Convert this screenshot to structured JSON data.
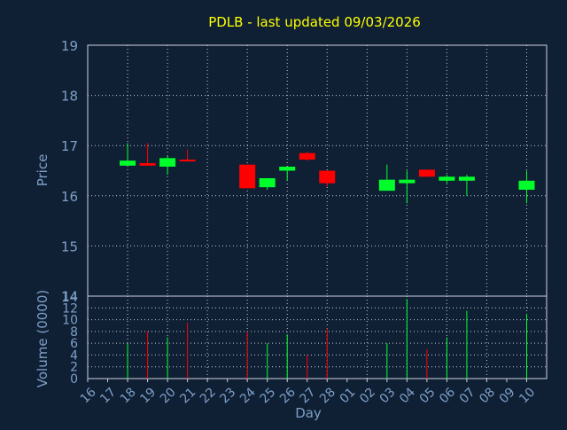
{
  "title": "PDLB - last updated 09/03/2026",
  "colors": {
    "background": "#0f2035",
    "up": "#00ff2a",
    "down": "#ff0000",
    "axis_text": "#7f9fc6",
    "title": "#ffff00"
  },
  "chart_data": [
    {
      "type": "candlestick",
      "ylabel": "Price",
      "ylim": [
        14,
        19
      ],
      "yticks": [
        "14",
        "15",
        "16",
        "17",
        "18",
        "19"
      ],
      "grid": true,
      "candles": [
        {
          "x": "17",
          "open": 16.6,
          "high": 17.05,
          "low": 16.6,
          "close": 16.7
        },
        {
          "x": "18",
          "open": 16.65,
          "high": 17.05,
          "low": 16.6,
          "close": 16.6
        },
        {
          "x": "19",
          "open": 16.58,
          "high": 16.8,
          "low": 16.42,
          "close": 16.75
        },
        {
          "x": "20",
          "open": 16.72,
          "high": 16.92,
          "low": 16.68,
          "close": 16.7
        },
        {
          "x": "23",
          "open": 16.62,
          "high": 16.62,
          "low": 16.15,
          "close": 16.15
        },
        {
          "x": "24",
          "open": 16.17,
          "high": 16.35,
          "low": 16.12,
          "close": 16.35
        },
        {
          "x": "25",
          "open": 16.5,
          "high": 16.58,
          "low": 16.3,
          "close": 16.58
        },
        {
          "x": "26",
          "open": 16.85,
          "high": 16.88,
          "low": 16.7,
          "close": 16.72
        },
        {
          "x": "27",
          "open": 16.5,
          "high": 16.5,
          "low": 16.18,
          "close": 16.25
        },
        {
          "x": "02",
          "open": 16.1,
          "high": 16.62,
          "low": 16.1,
          "close": 16.32
        },
        {
          "x": "03",
          "open": 16.25,
          "high": 16.5,
          "low": 15.85,
          "close": 16.32
        },
        {
          "x": "04",
          "open": 16.52,
          "high": 16.52,
          "low": 16.38,
          "close": 16.38
        },
        {
          "x": "05",
          "open": 16.3,
          "high": 16.42,
          "low": 16.25,
          "close": 16.38
        },
        {
          "x": "06",
          "open": 16.3,
          "high": 16.42,
          "low": 16.0,
          "close": 16.38
        },
        {
          "x": "09",
          "open": 16.12,
          "high": 16.5,
          "low": 15.85,
          "close": 16.3
        }
      ]
    },
    {
      "type": "bar",
      "ylabel": "Volume (0000)",
      "xlabel": "Day",
      "ylim": [
        0,
        14
      ],
      "yticks": [
        "0",
        "2",
        "4",
        "6",
        "8",
        "10",
        "12",
        "14"
      ],
      "categories": [
        "16",
        "17",
        "18",
        "19",
        "20",
        "21",
        "22",
        "23",
        "24",
        "25",
        "26",
        "27",
        "28",
        "01",
        "02",
        "03",
        "04",
        "05",
        "06",
        "07",
        "08",
        "09",
        "10"
      ],
      "grid": true,
      "bars": [
        {
          "x": "17",
          "value": 6,
          "direction": "up"
        },
        {
          "x": "18",
          "value": 8,
          "direction": "down"
        },
        {
          "x": "19",
          "value": 7,
          "direction": "up"
        },
        {
          "x": "20",
          "value": 9.5,
          "direction": "down"
        },
        {
          "x": "23",
          "value": 8,
          "direction": "down"
        },
        {
          "x": "24",
          "value": 6,
          "direction": "up"
        },
        {
          "x": "25",
          "value": 7.5,
          "direction": "up"
        },
        {
          "x": "26",
          "value": 4,
          "direction": "down"
        },
        {
          "x": "27",
          "value": 8.5,
          "direction": "down"
        },
        {
          "x": "02",
          "value": 6,
          "direction": "up"
        },
        {
          "x": "03",
          "value": 13.5,
          "direction": "up"
        },
        {
          "x": "04",
          "value": 5,
          "direction": "down"
        },
        {
          "x": "05",
          "value": 7,
          "direction": "up"
        },
        {
          "x": "06",
          "value": 11.5,
          "direction": "up"
        },
        {
          "x": "09",
          "value": 11,
          "direction": "up"
        }
      ]
    }
  ]
}
